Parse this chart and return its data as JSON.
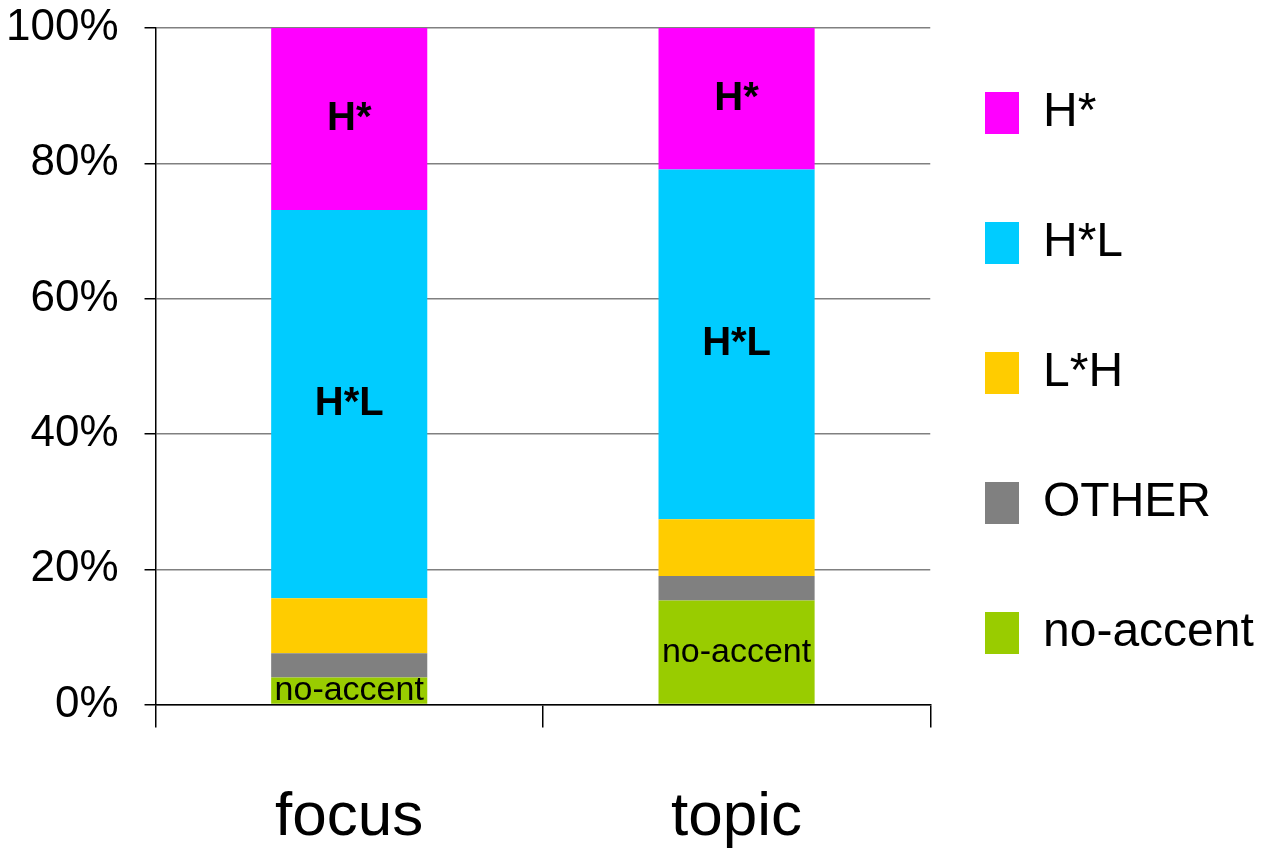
{
  "chart_data": {
    "type": "bar",
    "stacked": true,
    "categories": [
      "focus",
      "topic"
    ],
    "series": [
      {
        "name": "no-accent",
        "color": "#99cc00",
        "values": [
          4.0,
          15.4
        ],
        "value_labels": [
          "no-accent",
          "no-accent"
        ]
      },
      {
        "name": "OTHER",
        "color": "#808080",
        "values": [
          3.6,
          3.6
        ]
      },
      {
        "name": "L*H",
        "color": "#ffcc00",
        "values": [
          8.1,
          8.4
        ]
      },
      {
        "name": "H*L",
        "color": "#00ccff",
        "values": [
          57.4,
          51.7
        ],
        "value_labels": [
          "H*L",
          "H*L"
        ]
      },
      {
        "name": "H*",
        "color": "#ff00ff",
        "values": [
          26.9,
          20.9
        ],
        "value_labels": [
          "H*",
          "H*"
        ]
      }
    ],
    "ylim": [
      0,
      100
    ],
    "yticks": [
      {
        "value": 0,
        "label": "0%"
      },
      {
        "value": 20,
        "label": "20%"
      },
      {
        "value": 40,
        "label": "40%"
      },
      {
        "value": 60,
        "label": "60%"
      },
      {
        "value": 80,
        "label": "80%"
      },
      {
        "value": 100,
        "label": "100%"
      }
    ],
    "grid": "y",
    "legend": "right"
  }
}
